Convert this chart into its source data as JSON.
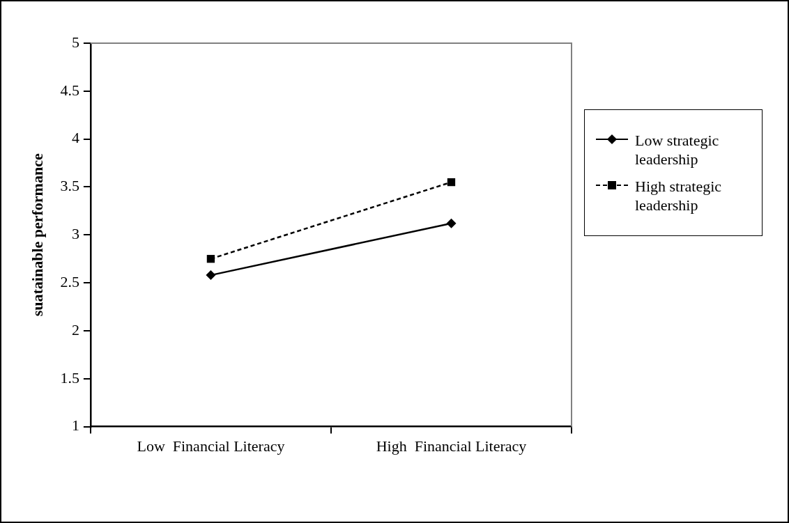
{
  "chart_data": {
    "type": "line",
    "ylabel": "suatainable performance",
    "categories": [
      "Low  Financial Literacy",
      "High  Financial Literacy"
    ],
    "series": [
      {
        "name": "Low strategic leadership",
        "color": "#000000",
        "values": [
          2.58,
          3.12
        ],
        "marker": "diamond",
        "line_style": "solid"
      },
      {
        "name": "High strategic leadership",
        "color": "#000000",
        "values": [
          2.75,
          3.55
        ],
        "marker": "square",
        "line_style": "dashed"
      }
    ],
    "ylim": [
      1,
      5
    ],
    "yticks": [
      1,
      1.5,
      2,
      2.5,
      3,
      3.5,
      4,
      4.5,
      5
    ],
    "grid": false,
    "legend": "right"
  }
}
